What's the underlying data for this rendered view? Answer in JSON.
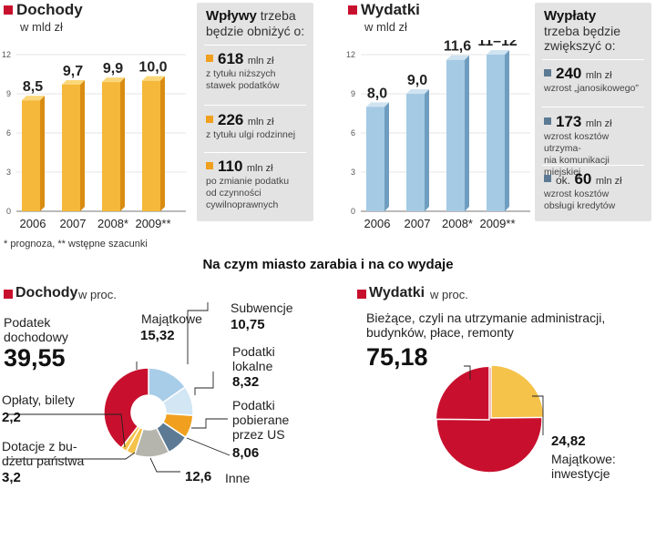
{
  "main_title": "Na czym miasto zarabia i na co wydaje",
  "footnote": "* prognoza, ** wstępne szacunki",
  "income": {
    "title": "Dochody",
    "unit": "w mld zł",
    "panel": {
      "title_bold": "Wpływy",
      "title_rest1": " trzeba",
      "title_rest2": "będzie obniżyć o:",
      "items": [
        {
          "value": "618",
          "unit": "mln zł",
          "desc1": "z tytułu niższych",
          "desc2": "stawek podatków",
          "desc3": ""
        },
        {
          "value": "226",
          "unit": "mln zł",
          "desc1": "z tytułu ulgi rodzinnej",
          "desc2": "",
          "desc3": ""
        },
        {
          "value": "110",
          "unit": "mln zł",
          "desc1": "po zmianie podatku",
          "desc2": "od czynności",
          "desc3": "cywilnoprawnych"
        }
      ]
    }
  },
  "expenses": {
    "title": "Wydatki",
    "unit": "w mld zł",
    "panel": {
      "title_bold": "Wypłaty",
      "title_rest1": "trzeba będzie",
      "title_rest2": "zwiększyć o:",
      "items": [
        {
          "prefix": "",
          "value": "240",
          "unit": "mln zł",
          "desc1": "wzrost „janosikowego”",
          "desc2": ""
        },
        {
          "prefix": "",
          "value": "173",
          "unit": "mln zł",
          "desc1": "wzrost kosztów utrzyma-",
          "desc2": "nia komunikacji miejskiej"
        },
        {
          "prefix": "ok.",
          "value": "60",
          "unit": "mln zł",
          "desc1": "wzrost kosztów",
          "desc2": "obsługi kredytów"
        }
      ]
    }
  },
  "income_pie_section": {
    "title": "Dochody",
    "unit": "w proc."
  },
  "expense_pie_section": {
    "title": "Wydatki",
    "unit": "w proc."
  },
  "income_pie_labels": {
    "podatek": [
      "Podatek",
      "dochodowy"
    ],
    "oplaty": "Opłaty, bilety",
    "dotacje": [
      "Dotacje z bu-",
      "dżetu państwa"
    ],
    "majatkowe": "Majątkowe",
    "subwencje": "Subwencje",
    "lokalne": [
      "Podatki",
      "lokalne"
    ],
    "pobierane": [
      "Podatki",
      "pobierane",
      "przez US"
    ],
    "inne": "Inne"
  },
  "expense_pie_labels": {
    "biezace": [
      "Bieżące, czyli na utrzymanie administracji,",
      "budynków, płace, remonty"
    ],
    "majatkowe": [
      "Majątkowe:",
      "inwestycje"
    ]
  },
  "colors": {
    "red": "#c8102e",
    "orange": "#f0a01e",
    "gold": "#f5c24a",
    "blue_bar": "#9fc5e0",
    "light_blue": "#a8cde8",
    "lighter_blue": "#d2e6f4",
    "slate": "#5c7a93",
    "gray": "#b5b5ad"
  },
  "chart_data": [
    {
      "type": "bar",
      "title": "Dochody",
      "ylabel": "w mld zł",
      "categories": [
        "2006",
        "2007",
        "2008*",
        "2009**"
      ],
      "values": [
        8.5,
        9.7,
        9.9,
        10.0
      ],
      "value_labels": [
        "8,5",
        "9,7",
        "9,9",
        "10,0"
      ],
      "ylim": [
        0,
        12
      ],
      "yticks": [
        0,
        3,
        6,
        9,
        12
      ]
    },
    {
      "type": "bar",
      "title": "Wydatki",
      "ylabel": "w mld zł",
      "categories": [
        "2006",
        "2007",
        "2008*",
        "2009**"
      ],
      "values": [
        8.0,
        9.0,
        11.6,
        12.0
      ],
      "value_labels": [
        "8,0",
        "9,0",
        "11,6",
        "11–12"
      ],
      "ylim": [
        0,
        12
      ],
      "yticks": [
        0,
        3,
        6,
        9,
        12
      ]
    },
    {
      "type": "pie",
      "title": "Dochody",
      "unit": "w proc.",
      "slices": [
        {
          "name": "Majątkowe",
          "value": 15.32,
          "label": "15,32"
        },
        {
          "name": "Subwencje",
          "value": 10.75,
          "label": "10,75"
        },
        {
          "name": "Podatki lokalne",
          "value": 8.32,
          "label": "8,32"
        },
        {
          "name": "Podatki pobierane przez US",
          "value": 8.06,
          "label": "8,06"
        },
        {
          "name": "Inne",
          "value": 12.6,
          "label": "12,6"
        },
        {
          "name": "Dotacje z budżetu państwa",
          "value": 3.2,
          "label": "3,2"
        },
        {
          "name": "Opłaty, bilety",
          "value": 2.2,
          "label": "2,2"
        },
        {
          "name": "Podatek dochodowy",
          "value": 39.55,
          "label": "39,55"
        }
      ]
    },
    {
      "type": "pie",
      "title": "Wydatki",
      "unit": "w proc.",
      "slices": [
        {
          "name": "Majątkowe: inwestycje",
          "value": 24.82,
          "label": "24,82"
        },
        {
          "name": "Bieżące",
          "value": 75.18,
          "label": "75,18"
        }
      ]
    }
  ]
}
